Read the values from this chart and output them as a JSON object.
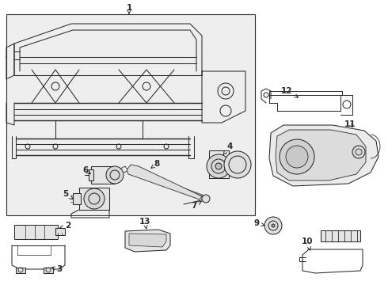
{
  "bg": "#ffffff",
  "box_bg": "#e8e8e8",
  "lc": "#2a2a2a",
  "fig_w": 4.9,
  "fig_h": 3.6,
  "dpi": 100
}
